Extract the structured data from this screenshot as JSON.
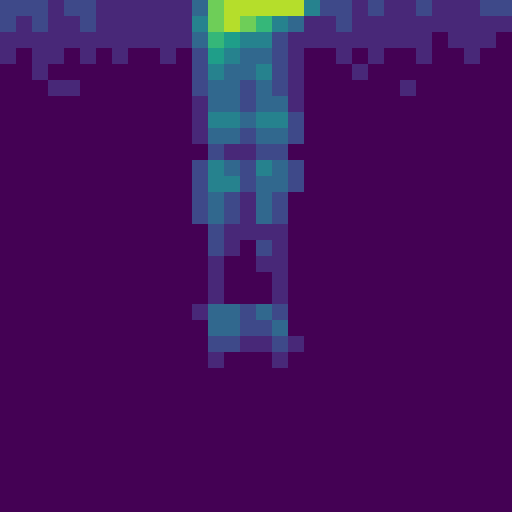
{
  "chart_data": {
    "type": "heatmap",
    "color": "viridis",
    "tick_labels": false,
    "color_range": [
      0,
      9
    ],
    "cells": [
      [
        2,
        2,
        2,
        1,
        2,
        2,
        1,
        1,
        1,
        1,
        1,
        1,
        3,
        7,
        8,
        8,
        8,
        8,
        8,
        4,
        2,
        2,
        1,
        2,
        1,
        1,
        2,
        1,
        1,
        1,
        2,
        2
      ],
      [
        2,
        1,
        2,
        1,
        1,
        2,
        1,
        1,
        1,
        1,
        1,
        1,
        4,
        7,
        8,
        7,
        6,
        4,
        3,
        1,
        1,
        2,
        1,
        1,
        1,
        1,
        1,
        1,
        1,
        1,
        1,
        1
      ],
      [
        1,
        1,
        1,
        1,
        1,
        1,
        1,
        1,
        1,
        1,
        1,
        1,
        3,
        6,
        5,
        4,
        4,
        2,
        1,
        1,
        1,
        1,
        1,
        1,
        1,
        1,
        1,
        0,
        1,
        1,
        1,
        0
      ],
      [
        1,
        0,
        1,
        1,
        0,
        1,
        0,
        1,
        0,
        0,
        1,
        0,
        2,
        5,
        4,
        3,
        3,
        2,
        1,
        0,
        0,
        1,
        0,
        1,
        0,
        0,
        1,
        0,
        0,
        1,
        0,
        0
      ],
      [
        0,
        0,
        1,
        0,
        0,
        0,
        0,
        0,
        0,
        0,
        0,
        0,
        2,
        4,
        3,
        3,
        4,
        2,
        1,
        0,
        0,
        0,
        1,
        0,
        0,
        0,
        0,
        0,
        0,
        0,
        0,
        0
      ],
      [
        0,
        0,
        0,
        1,
        1,
        0,
        0,
        0,
        0,
        0,
        0,
        0,
        2,
        3,
        3,
        2,
        3,
        2,
        1,
        0,
        0,
        0,
        0,
        0,
        0,
        1,
        0,
        0,
        0,
        0,
        0,
        0
      ],
      [
        0,
        0,
        0,
        0,
        0,
        0,
        0,
        0,
        0,
        0,
        0,
        0,
        1,
        3,
        3,
        2,
        3,
        3,
        1,
        0,
        0,
        0,
        0,
        0,
        0,
        0,
        0,
        0,
        0,
        0,
        0,
        0
      ],
      [
        0,
        0,
        0,
        0,
        0,
        0,
        0,
        0,
        0,
        0,
        0,
        0,
        1,
        4,
        4,
        3,
        4,
        4,
        2,
        0,
        0,
        0,
        0,
        0,
        0,
        0,
        0,
        0,
        0,
        0,
        0,
        0
      ],
      [
        0,
        0,
        0,
        0,
        0,
        0,
        0,
        0,
        0,
        0,
        0,
        0,
        1,
        3,
        3,
        2,
        3,
        3,
        2,
        0,
        0,
        0,
        0,
        0,
        0,
        0,
        0,
        0,
        0,
        0,
        0,
        0
      ],
      [
        0,
        0,
        0,
        0,
        0,
        0,
        0,
        0,
        0,
        0,
        0,
        0,
        0,
        2,
        1,
        1,
        2,
        2,
        0,
        0,
        0,
        0,
        0,
        0,
        0,
        0,
        0,
        0,
        0,
        0,
        0,
        0
      ],
      [
        0,
        0,
        0,
        0,
        0,
        0,
        0,
        0,
        0,
        0,
        0,
        0,
        2,
        4,
        3,
        2,
        4,
        3,
        2,
        0,
        0,
        0,
        0,
        0,
        0,
        0,
        0,
        0,
        0,
        0,
        0,
        0
      ],
      [
        0,
        0,
        0,
        0,
        0,
        0,
        0,
        0,
        0,
        0,
        0,
        0,
        2,
        4,
        4,
        2,
        3,
        3,
        2,
        0,
        0,
        0,
        0,
        0,
        0,
        0,
        0,
        0,
        0,
        0,
        0,
        0
      ],
      [
        0,
        0,
        0,
        0,
        0,
        0,
        0,
        0,
        0,
        0,
        0,
        0,
        2,
        3,
        2,
        1,
        3,
        2,
        0,
        0,
        0,
        0,
        0,
        0,
        0,
        0,
        0,
        0,
        0,
        0,
        0,
        0
      ],
      [
        0,
        0,
        0,
        0,
        0,
        0,
        0,
        0,
        0,
        0,
        0,
        0,
        2,
        3,
        2,
        1,
        3,
        2,
        0,
        0,
        0,
        0,
        0,
        0,
        0,
        0,
        0,
        0,
        0,
        0,
        0,
        0
      ],
      [
        0,
        0,
        0,
        0,
        0,
        0,
        0,
        0,
        0,
        0,
        0,
        0,
        0,
        2,
        1,
        1,
        1,
        1,
        0,
        0,
        0,
        0,
        0,
        0,
        0,
        0,
        0,
        0,
        0,
        0,
        0,
        0
      ],
      [
        0,
        0,
        0,
        0,
        0,
        0,
        0,
        0,
        0,
        0,
        0,
        0,
        0,
        2,
        1,
        0,
        2,
        1,
        0,
        0,
        0,
        0,
        0,
        0,
        0,
        0,
        0,
        0,
        0,
        0,
        0,
        0
      ],
      [
        0,
        0,
        0,
        0,
        0,
        0,
        0,
        0,
        0,
        0,
        0,
        0,
        0,
        1,
        0,
        0,
        1,
        1,
        0,
        0,
        0,
        0,
        0,
        0,
        0,
        0,
        0,
        0,
        0,
        0,
        0,
        0
      ],
      [
        0,
        0,
        0,
        0,
        0,
        0,
        0,
        0,
        0,
        0,
        0,
        0,
        0,
        1,
        0,
        0,
        0,
        1,
        0,
        0,
        0,
        0,
        0,
        0,
        0,
        0,
        0,
        0,
        0,
        0,
        0,
        0
      ],
      [
        0,
        0,
        0,
        0,
        0,
        0,
        0,
        0,
        0,
        0,
        0,
        0,
        0,
        1,
        0,
        0,
        0,
        1,
        0,
        0,
        0,
        0,
        0,
        0,
        0,
        0,
        0,
        0,
        0,
        0,
        0,
        0
      ],
      [
        0,
        0,
        0,
        0,
        0,
        0,
        0,
        0,
        0,
        0,
        0,
        0,
        1,
        3,
        3,
        2,
        3,
        2,
        0,
        0,
        0,
        0,
        0,
        0,
        0,
        0,
        0,
        0,
        0,
        0,
        0,
        0
      ],
      [
        0,
        0,
        0,
        0,
        0,
        0,
        0,
        0,
        0,
        0,
        0,
        0,
        0,
        3,
        3,
        2,
        2,
        3,
        0,
        0,
        0,
        0,
        0,
        0,
        0,
        0,
        0,
        0,
        0,
        0,
        0,
        0
      ],
      [
        0,
        0,
        0,
        0,
        0,
        0,
        0,
        0,
        0,
        0,
        0,
        0,
        0,
        2,
        2,
        1,
        1,
        2,
        1,
        0,
        0,
        0,
        0,
        0,
        0,
        0,
        0,
        0,
        0,
        0,
        0,
        0
      ],
      [
        0,
        0,
        0,
        0,
        0,
        0,
        0,
        0,
        0,
        0,
        0,
        0,
        0,
        1,
        0,
        0,
        0,
        1,
        0,
        0,
        0,
        0,
        0,
        0,
        0,
        0,
        0,
        0,
        0,
        0,
        0,
        0
      ],
      [
        0,
        0,
        0,
        0,
        0,
        0,
        0,
        0,
        0,
        0,
        0,
        0,
        0,
        0,
        0,
        0,
        0,
        0,
        0,
        0,
        0,
        0,
        0,
        0,
        0,
        0,
        0,
        0,
        0,
        0,
        0,
        0
      ],
      [
        0,
        0,
        0,
        0,
        0,
        0,
        0,
        0,
        0,
        0,
        0,
        0,
        0,
        0,
        0,
        0,
        0,
        0,
        0,
        0,
        0,
        0,
        0,
        0,
        0,
        0,
        0,
        0,
        0,
        0,
        0,
        0
      ],
      [
        0,
        0,
        0,
        0,
        0,
        0,
        0,
        0,
        0,
        0,
        0,
        0,
        0,
        0,
        0,
        0,
        0,
        0,
        0,
        0,
        0,
        0,
        0,
        0,
        0,
        0,
        0,
        0,
        0,
        0,
        0,
        0
      ],
      [
        0,
        0,
        0,
        0,
        0,
        0,
        0,
        0,
        0,
        0,
        0,
        0,
        0,
        0,
        0,
        0,
        0,
        0,
        0,
        0,
        0,
        0,
        0,
        0,
        0,
        0,
        0,
        0,
        0,
        0,
        0,
        0
      ],
      [
        0,
        0,
        0,
        0,
        0,
        0,
        0,
        0,
        0,
        0,
        0,
        0,
        0,
        0,
        0,
        0,
        0,
        0,
        0,
        0,
        0,
        0,
        0,
        0,
        0,
        0,
        0,
        0,
        0,
        0,
        0,
        0
      ],
      [
        0,
        0,
        0,
        0,
        0,
        0,
        0,
        0,
        0,
        0,
        0,
        0,
        0,
        0,
        0,
        0,
        0,
        0,
        0,
        0,
        0,
        0,
        0,
        0,
        0,
        0,
        0,
        0,
        0,
        0,
        0,
        0
      ],
      [
        0,
        0,
        0,
        0,
        0,
        0,
        0,
        0,
        0,
        0,
        0,
        0,
        0,
        0,
        0,
        0,
        0,
        0,
        0,
        0,
        0,
        0,
        0,
        0,
        0,
        0,
        0,
        0,
        0,
        0,
        0,
        0
      ],
      [
        0,
        0,
        0,
        0,
        0,
        0,
        0,
        0,
        0,
        0,
        0,
        0,
        0,
        0,
        0,
        0,
        0,
        0,
        0,
        0,
        0,
        0,
        0,
        0,
        0,
        0,
        0,
        0,
        0,
        0,
        0,
        0
      ],
      [
        0,
        0,
        0,
        0,
        0,
        0,
        0,
        0,
        0,
        0,
        0,
        0,
        0,
        0,
        0,
        0,
        0,
        0,
        0,
        0,
        0,
        0,
        0,
        0,
        0,
        0,
        0,
        0,
        0,
        0,
        0,
        0
      ]
    ]
  }
}
